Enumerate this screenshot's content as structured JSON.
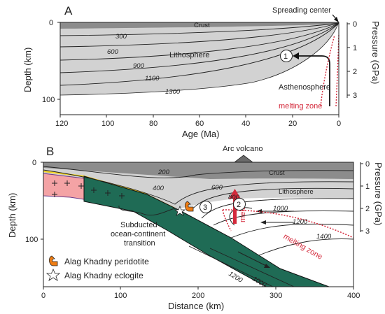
{
  "panel_a": {
    "letter": "A",
    "spreading_center_label": "Spreading center",
    "lithosphere_label": "Lithosphere",
    "asthenosphere_label": "Asthenosphere",
    "crust_label": "Crust",
    "melting_zone_label": "melting zone",
    "marker_1": "1",
    "x_axis_title": "Age (Ma)",
    "y_axis_title": "Depth (km)",
    "y2_axis_title": "Pressure (GPa)",
    "x_ticks": [
      "120",
      "100",
      "80",
      "60",
      "40",
      "20",
      "0"
    ],
    "y_ticks": [
      "0",
      "100"
    ],
    "p_ticks": [
      "0",
      "1",
      "2",
      "3"
    ],
    "isotherms": [
      "300",
      "600",
      "900",
      "1100",
      "1300"
    ]
  },
  "panel_b": {
    "letter": "B",
    "arc_volcano_label": "Arc volcano",
    "crust_label": "Crust",
    "lithosphere_label": "Lithosphere",
    "melts_label": "melts",
    "melting_zone_label": "melting zone",
    "subducted_label_1": "Subducted",
    "subducted_label_2": "ocean-continent",
    "subducted_label_3": "transition",
    "marker_2": "2",
    "marker_3": "3",
    "x_axis_title": "Distance (km)",
    "y_axis_title": "Depth (km)",
    "y2_axis_title": "Pressure (GPa)",
    "x_ticks": [
      "0",
      "100",
      "200",
      "300",
      "400"
    ],
    "y_ticks": [
      "0",
      "100"
    ],
    "p_ticks": [
      "0",
      "1",
      "2",
      "3"
    ],
    "isotherms": [
      "200",
      "400",
      "600",
      "800",
      "1000",
      "1200",
      "1400",
      "1200",
      "1000"
    ]
  },
  "legend": {
    "peridotite": "Alag Khadny peridotite",
    "eclogite": "Alag Khadny eclogite"
  },
  "colors": {
    "crust": "#8c8c8c",
    "lithosphere": "#d2d2d2",
    "slab": "#1f6b55",
    "continental": "#f4a3a5",
    "melt": "#d42a3c",
    "peridotite": "#ee7d14",
    "moho": "#f2d21b"
  }
}
